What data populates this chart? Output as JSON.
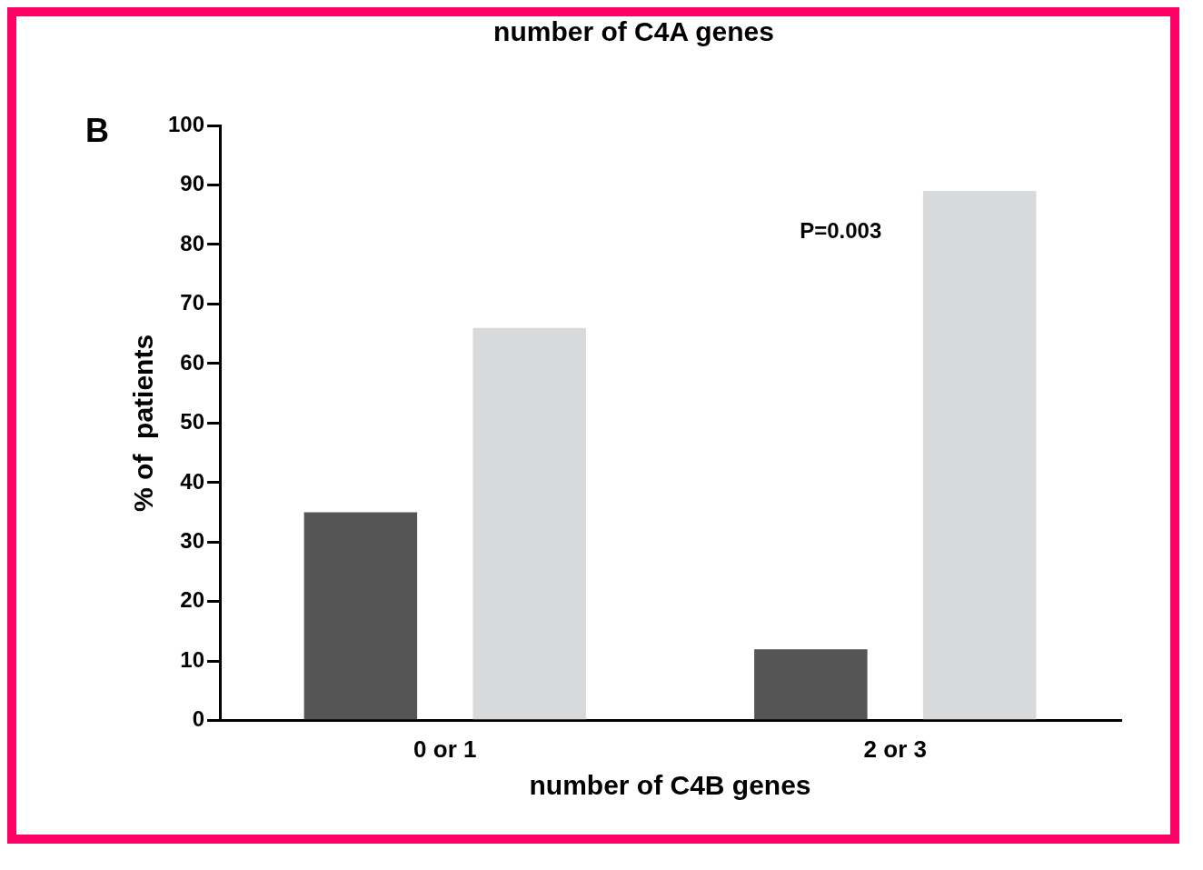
{
  "chart_data": {
    "type": "bar",
    "xlabel": "number of C4B genes",
    "ylabel": "% of  patients",
    "categories": [
      "0 or 1",
      "2 or 3"
    ],
    "series": [
      {
        "color": "#555555",
        "values": [
          35,
          12
        ]
      },
      {
        "color": "#d8d9da",
        "values": [
          66,
          89
        ]
      }
    ],
    "ylim": [
      0,
      100
    ],
    "yticks": [
      0,
      10,
      20,
      30,
      40,
      50,
      60,
      70,
      80,
      90,
      100
    ],
    "grid": false,
    "legend": false,
    "annotations": [
      "number of C4A genes",
      "B",
      "P=0.003"
    ]
  }
}
